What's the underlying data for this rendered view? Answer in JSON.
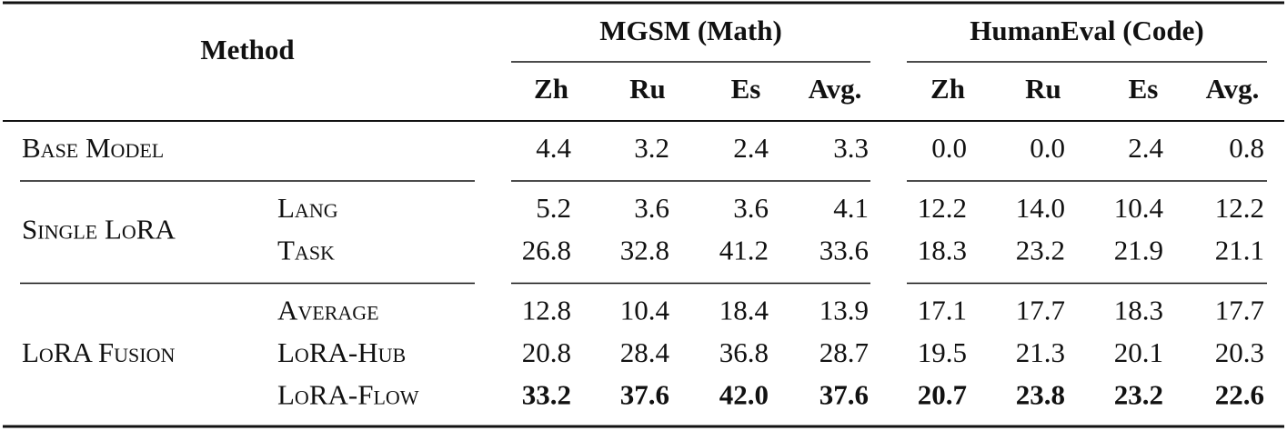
{
  "table": {
    "header": {
      "method": "Method",
      "groups": [
        {
          "name": "MGSM (Math)",
          "columns": [
            "Zh",
            "Ru",
            "Es",
            "Avg."
          ]
        },
        {
          "name": "HumanEval (Code)",
          "columns": [
            "Zh",
            "Ru",
            "Es",
            "Avg."
          ]
        }
      ]
    },
    "sections": [
      {
        "label": "Base Model",
        "rows": [
          {
            "values": [
              "4.4",
              "3.2",
              "2.4",
              "3.3",
              "0.0",
              "0.0",
              "2.4",
              "0.8"
            ]
          }
        ]
      },
      {
        "label": "Single LoRA",
        "rows": [
          {
            "name": "Lang",
            "values": [
              "5.2",
              "3.6",
              "3.6",
              "4.1",
              "12.2",
              "14.0",
              "10.4",
              "12.2"
            ]
          },
          {
            "name": "Task",
            "values": [
              "26.8",
              "32.8",
              "41.2",
              "33.6",
              "18.3",
              "23.2",
              "21.9",
              "21.1"
            ]
          }
        ]
      },
      {
        "label": "LoRA Fusion",
        "rows": [
          {
            "name": "Average",
            "values": [
              "12.8",
              "10.4",
              "18.4",
              "13.9",
              "17.1",
              "17.7",
              "18.3",
              "17.7"
            ]
          },
          {
            "name": "LoRA-Hub",
            "values": [
              "20.8",
              "28.4",
              "36.8",
              "28.7",
              "19.5",
              "21.3",
              "20.1",
              "20.3"
            ]
          },
          {
            "name": "LoRA-Flow",
            "bold": true,
            "values": [
              "33.2",
              "37.6",
              "42.0",
              "37.6",
              "20.7",
              "23.8",
              "23.2",
              "22.6"
            ]
          }
        ]
      }
    ]
  }
}
